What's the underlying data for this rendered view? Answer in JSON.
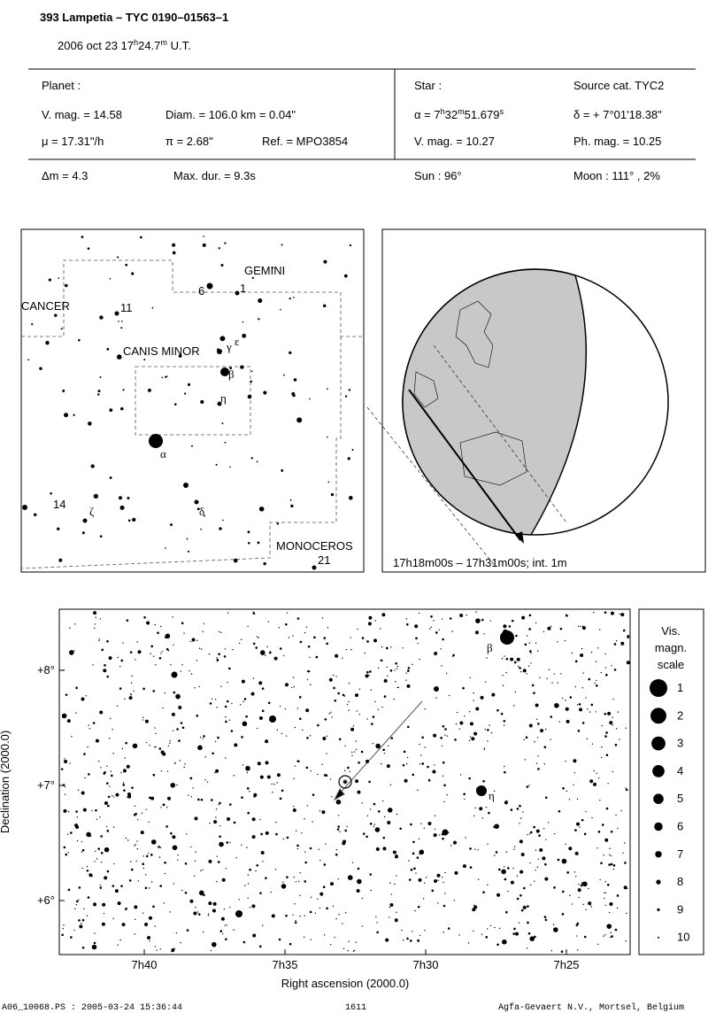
{
  "header": {
    "title": "393 Lampetia  –  TYC 0190–01563–1",
    "date": [
      "2006 oct 23  17",
      "h",
      "24.7",
      "m",
      " U.T."
    ]
  },
  "planet": {
    "label": "Planet :",
    "vmag": "V. mag. = 14.58",
    "diam": "Diam. = 106.0 km = 0.04\"",
    "mu": "μ =  17.31\"/h",
    "pi": "π =  2.68\"",
    "ref": "Ref. = MPO3854",
    "dm": "Δm = 4.3",
    "maxdur": "Max. dur. = 9.3s"
  },
  "star": {
    "label": "Star :",
    "source": "Source cat.  TYC2",
    "ra": [
      "α =  7",
      "h",
      "32",
      "m",
      "51.679",
      "s"
    ],
    "dec": "δ = + 7°01'18.38\"",
    "vmag": "V. mag. = 10.27",
    "phmag": "Ph. mag. = 10.25",
    "sun": "Sun :  96°",
    "moon": "Moon : 111° ,  2%"
  },
  "finder": {
    "gemini": "GEMINI",
    "cancer": "CANCER",
    "canis_minor": "CANIS MINOR",
    "monoceros": "MONOCEROS",
    "stars": [
      "11",
      "6",
      "1",
      "γ",
      "ε",
      "β",
      "η",
      "α",
      "δ",
      "ζ",
      "14",
      "21"
    ]
  },
  "globe": {
    "caption": "17h18m00s – 17h31m00s; int.  1m"
  },
  "chart": {
    "yticks": [
      "+8°",
      "+7°",
      "+6°"
    ],
    "xticks": [
      "7h40",
      "7h35",
      "7h30",
      "7h25"
    ],
    "xlabel": "Right ascension (2000.0)",
    "ylabel": "Declination (2000.0)",
    "labels": [
      "β",
      "η"
    ],
    "scale_title": [
      "Vis.",
      "magn.",
      "scale"
    ],
    "scale": [
      1,
      2,
      3,
      4,
      5,
      6,
      7,
      8,
      9,
      10
    ]
  },
  "footer": {
    "file": "A06_10068.PS : 2005-03-24 15:36:44",
    "page": "1611",
    "publisher": "Agfa-Gevaert N.V., Mortsel, Belgium"
  }
}
